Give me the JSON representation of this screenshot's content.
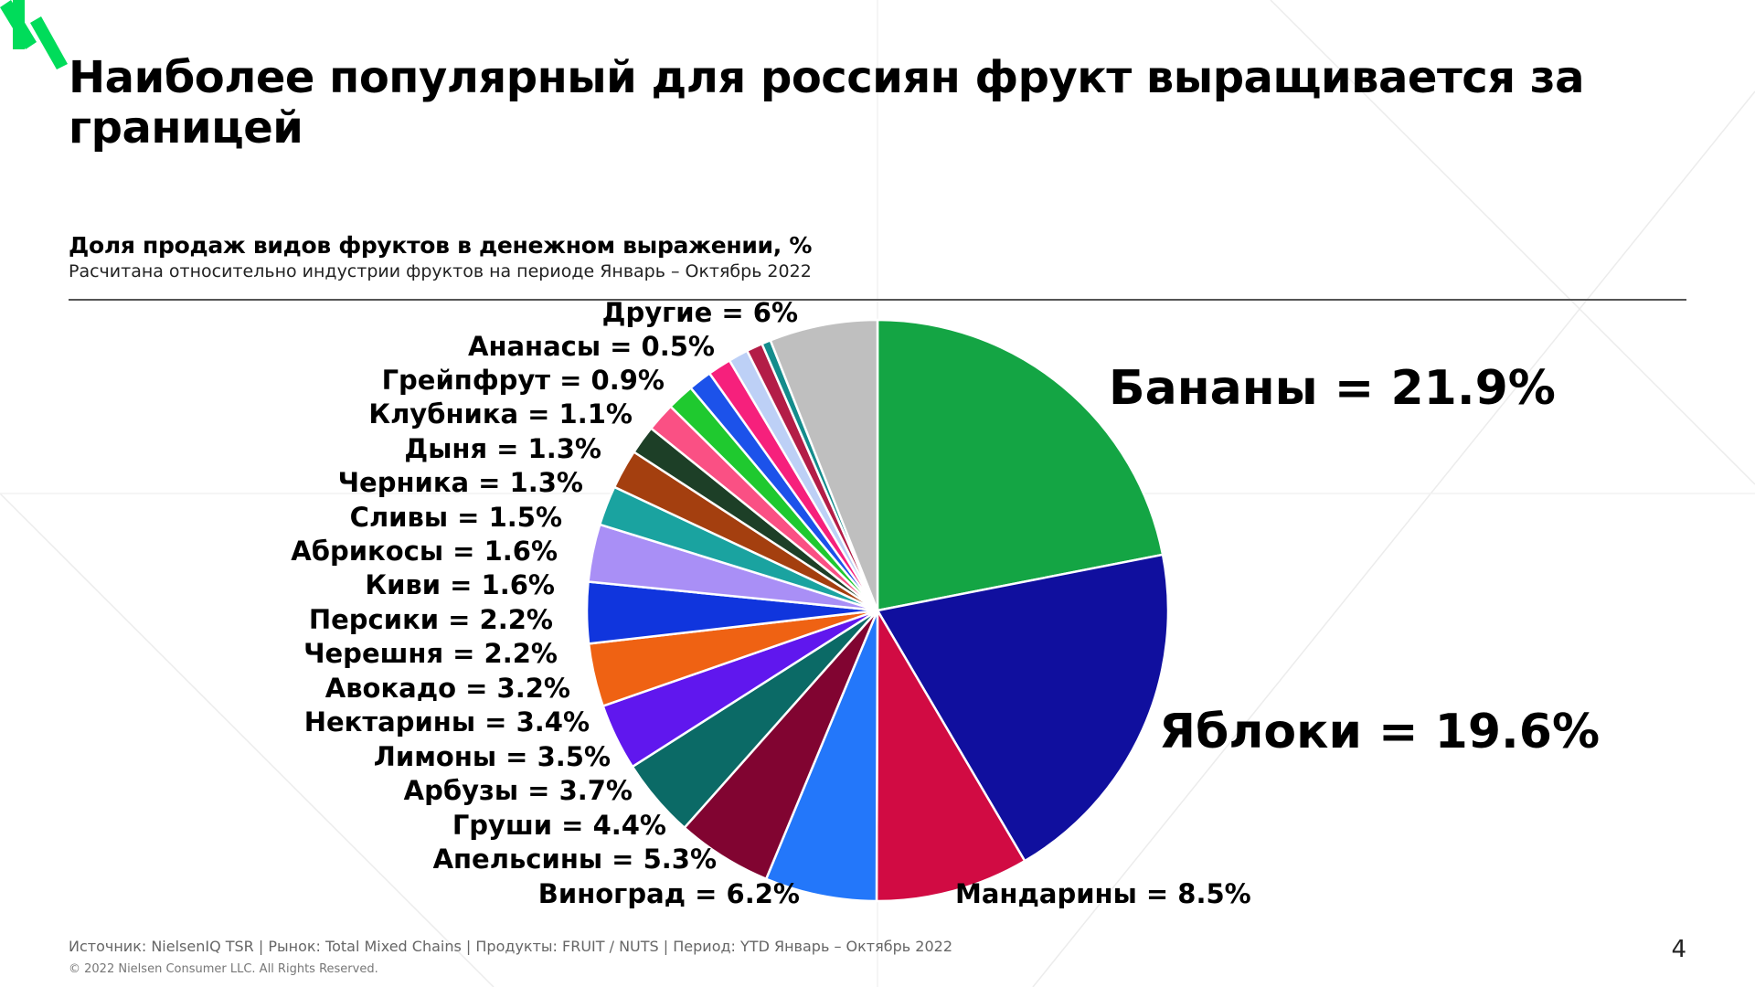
{
  "slide": {
    "title": "Наиболее популярный для россиян фрукт выращивается за границей",
    "chart_title": "Доля продаж видов фруктов в денежном выражении, %",
    "chart_note": "Расчитана относительно индустрии фруктов на периоде Январь – Октябрь 2022",
    "source": "Источник: NielsenIQ TSR | Рынок: Total Mixed Chains | Продукты: FRUIT / NUTS | Период: YTD Январь – Октябрь 2022",
    "copyright": "© 2022 Nielsen Consumer LLC. All Rights Reserved.",
    "page_number": "4",
    "accent_color": "#00dc5a"
  },
  "chart_data": {
    "type": "pie",
    "title": "Доля продаж видов фруктов в денежном выражении, %",
    "unit": "%",
    "start_angle_deg": 0,
    "direction": "clockwise",
    "slices": [
      {
        "label": "Бананы = 21.9%",
        "value": 21.9,
        "color": "#14a544"
      },
      {
        "label": "Яблоки = 19.6%",
        "value": 19.6,
        "color": "#100f9e"
      },
      {
        "label": "Мандарины = 8.5%",
        "value": 8.5,
        "color": "#d10b43"
      },
      {
        "label": "Виноград = 6.2%",
        "value": 6.2,
        "color": "#2377fa"
      },
      {
        "label": "Апельсины = 5.3%",
        "value": 5.3,
        "color": "#810431"
      },
      {
        "label": "Груши = 4.4%",
        "value": 4.4,
        "color": "#0b6a66"
      },
      {
        "label": "Арбузы = 3.7%",
        "value": 3.7,
        "color": "#6017ee"
      },
      {
        "label": "Лимоны = 3.5%",
        "value": 3.5,
        "color": "#ef6213"
      },
      {
        "label": "Нектарины = 3.4%",
        "value": 3.4,
        "color": "#1035dd"
      },
      {
        "label": "Авокадо = 3.2%",
        "value": 3.2,
        "color": "#a98ff6"
      },
      {
        "label": "Черешня = 2.2%",
        "value": 2.2,
        "color": "#1aa3a0"
      },
      {
        "label": "Персики = 2.2%",
        "value": 2.2,
        "color": "#a43f0f"
      },
      {
        "label": "Киви = 1.6%",
        "value": 1.6,
        "color": "#1d3f27"
      },
      {
        "label": "Абрикосы = 1.6%",
        "value": 1.6,
        "color": "#fa5084"
      },
      {
        "label": "Сливы = 1.5%",
        "value": 1.5,
        "color": "#1fc92f"
      },
      {
        "label": "Черника = 1.3%",
        "value": 1.3,
        "color": "#1c52ea"
      },
      {
        "label": "Дыня = 1.3%",
        "value": 1.3,
        "color": "#f6207c"
      },
      {
        "label": "Клубника = 1.1%",
        "value": 1.1,
        "color": "#bdd0f6"
      },
      {
        "label": "Грейпфрут = 0.9%",
        "value": 0.9,
        "color": "#b31d47"
      },
      {
        "label": "Ананасы = 0.5%",
        "value": 0.5,
        "color": "#148c8c"
      },
      {
        "label": "Другие = 6%",
        "value": 6,
        "color": "#bfbfbf"
      }
    ]
  }
}
